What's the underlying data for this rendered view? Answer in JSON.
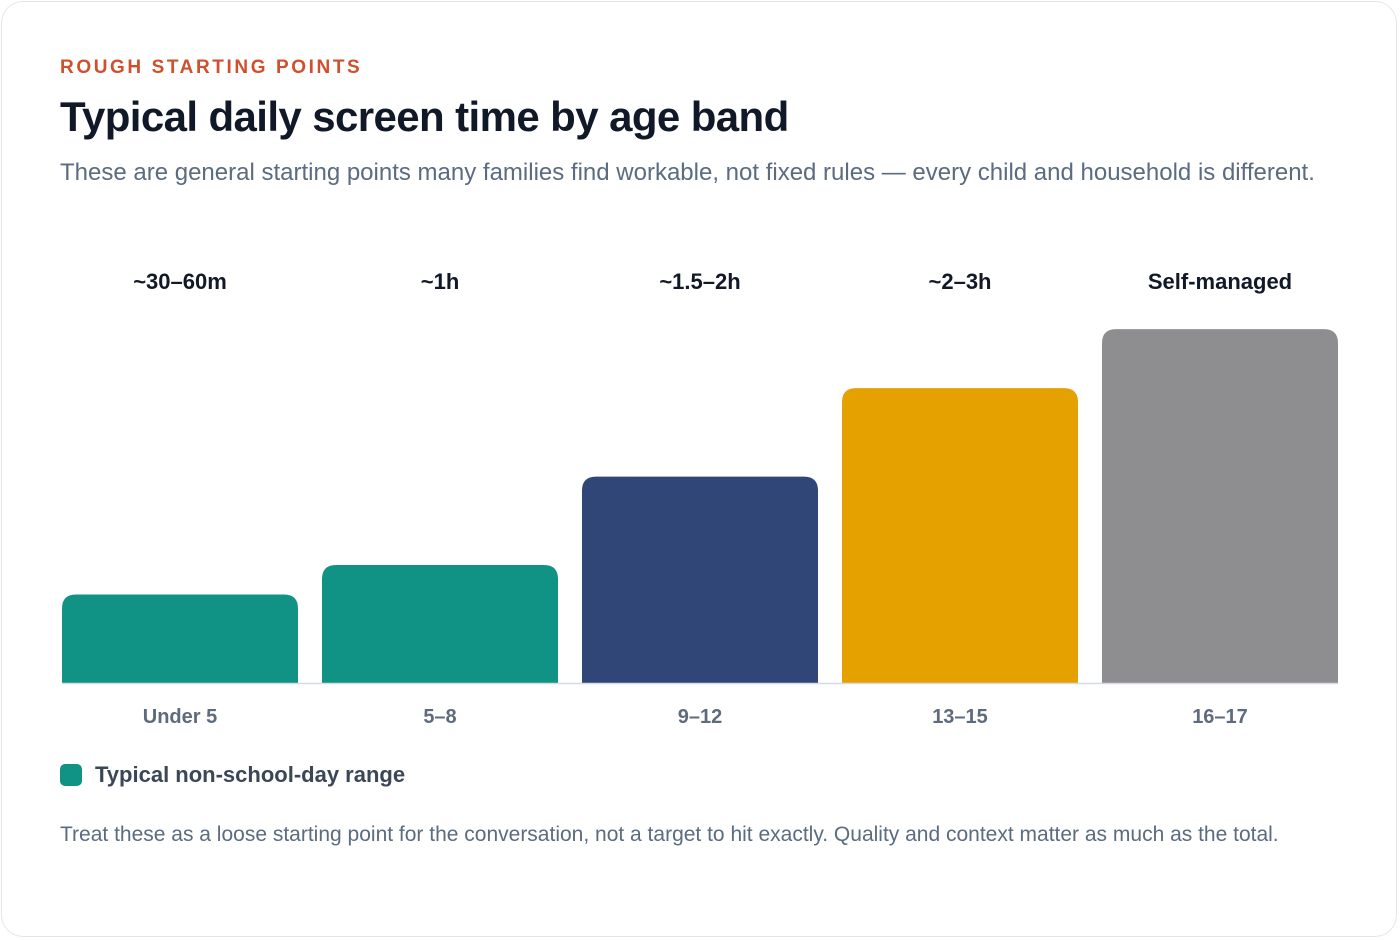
{
  "header": {
    "eyebrow": "ROUGH STARTING POINTS",
    "title": "Typical daily screen time by age band",
    "subtitle": "These are general starting points many families find workable, not fixed rules — every child and household is different."
  },
  "chart_data": {
    "type": "bar",
    "categories": [
      "Under 5",
      "5–8",
      "9–12",
      "13–15",
      "16–17"
    ],
    "values": [
      0.75,
      1,
      1.75,
      2.5,
      3
    ],
    "value_labels": [
      "~30–60m",
      "~1h",
      "~1.5–2h",
      "~2–3h",
      "Self-managed"
    ],
    "bar_colors": [
      "#109384",
      "#109384",
      "#2f4676",
      "#e5a100",
      "#8e8d90"
    ],
    "ylim": [
      0,
      3.4
    ],
    "unit": "hours",
    "grid": false,
    "legend_position": "bottom-left"
  },
  "legend": {
    "label": "Typical non-school-day range",
    "color": "#109384"
  },
  "footnote": {
    "text": "Treat these as a loose starting point for the conversation, not a target to hit exactly. Quality and context matter as much as the total."
  },
  "colors": {
    "accent": "#d24f2d",
    "title": "#111827",
    "body": "#5b6b80"
  }
}
